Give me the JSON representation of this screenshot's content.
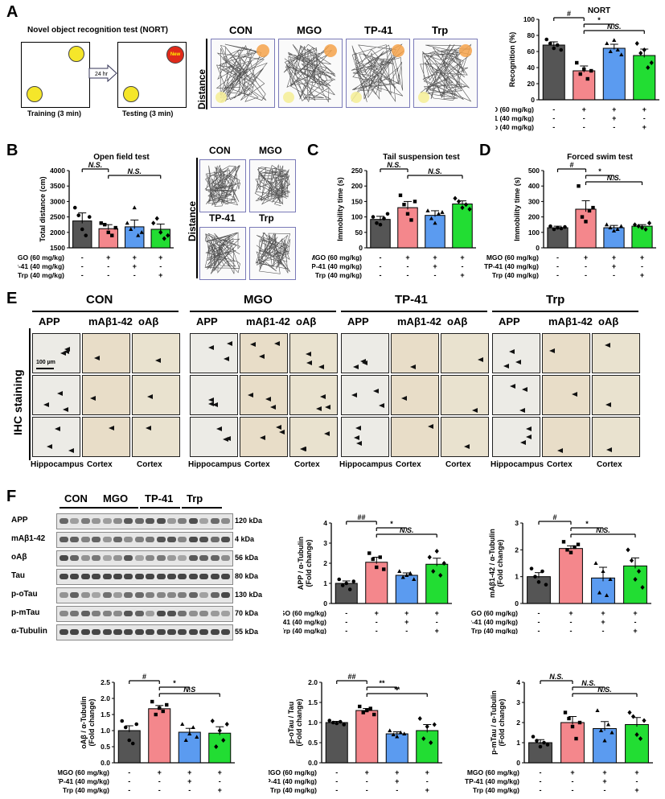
{
  "colors": {
    "CON": "#555555",
    "MGO": "#f4878c",
    "TP41": "#5b9bf0",
    "Trp": "#22dd33"
  },
  "panels": {
    "A": "A",
    "B": "B",
    "C": "C",
    "D": "D",
    "E": "E",
    "F": "F"
  },
  "nort_schema": {
    "title": "Novel object recognition test (NORT)",
    "arrow": "24 hr",
    "new_label": "New",
    "training": "Training (3 min)",
    "testing": "Testing (3 min)"
  },
  "tracks_A": {
    "distance": "Distance",
    "groups": [
      "CON",
      "MGO",
      "TP-41",
      "Trp"
    ]
  },
  "tracks_B": {
    "distance": "Distance",
    "groups": [
      "CON",
      "MGO",
      "TP-41",
      "Trp"
    ]
  },
  "treat_rows": {
    "mgo": "MGO (60 mg/kg)",
    "tp41": "TP-41 (40 mg/kg)",
    "trp": "Trp (40 mg/kg)",
    "mgo_signs": [
      "-",
      "+",
      "+",
      "+"
    ],
    "tp41_signs": [
      "-",
      "-",
      "+",
      "-"
    ],
    "trp_signs": [
      "-",
      "-",
      "-",
      "+"
    ]
  },
  "ihc": {
    "ylabel": "IHC staining",
    "scale": "100 µm",
    "groups": [
      {
        "name": "CON",
        "cols": [
          "APP",
          "mAβ1-42",
          "oAβ"
        ],
        "regions": [
          "Hippocampus",
          "Cortex",
          "Cortex"
        ]
      },
      {
        "name": "MGO",
        "cols": [
          "APP",
          "mAβ1-42",
          "oAβ"
        ],
        "regions": [
          "Hippocampus",
          "Cortex",
          "Cortex"
        ]
      },
      {
        "name": "TP-41",
        "cols": [
          "APP",
          "mAβ1-42",
          "oAβ"
        ],
        "regions": [
          "Hippocampus",
          "Cortex",
          "Cortex"
        ]
      },
      {
        "name": "Trp",
        "cols": [
          "APP",
          "mAβ1-42",
          "oAβ"
        ],
        "regions": [
          "Hippocampus",
          "Cortex",
          "Cortex"
        ]
      }
    ]
  },
  "blot": {
    "groups": [
      "CON",
      "MGO",
      "TP-41",
      "Trp"
    ],
    "rows": [
      {
        "name": "APP",
        "kda": "120 kDa"
      },
      {
        "name": "mAβ1-42",
        "kda": "4 kDa"
      },
      {
        "name": "oAβ",
        "kda": "56 kDa"
      },
      {
        "name": "Tau",
        "kda": "80 kDa"
      },
      {
        "name": "p-oTau",
        "kda": "130 kDa"
      },
      {
        "name": "p-mTau",
        "kda": "70 kDa"
      },
      {
        "name": "α-Tubulin",
        "kda": "55 kDa"
      }
    ]
  },
  "chart_data": [
    {
      "id": "nort",
      "type": "bar",
      "title": "NORT",
      "ylabel": "Recognition (%)",
      "ylim": [
        0,
        100
      ],
      "yticks": [
        0,
        20,
        40,
        60,
        80,
        100
      ],
      "categories": [
        "CON",
        "MGO",
        "TP-41",
        "Trp"
      ],
      "values": [
        68,
        36,
        64,
        55
      ],
      "errors": [
        4,
        6,
        5,
        8
      ],
      "points": [
        [
          75,
          70,
          64,
          68,
          62
        ],
        [
          46,
          32,
          38,
          26,
          36
        ],
        [
          70,
          60,
          74,
          62,
          56
        ],
        [
          70,
          58,
          62,
          40,
          46
        ]
      ],
      "sig": [
        {
          "from": 0,
          "to": 1,
          "label": "#"
        },
        {
          "from": 1,
          "to": 2,
          "label": "*"
        },
        {
          "from": 1,
          "to": 3,
          "label": "N.S."
        }
      ]
    },
    {
      "id": "openfield",
      "type": "bar",
      "title": "Open field test",
      "ylabel": "Total distance (cm)",
      "ylim": [
        1500,
        4000
      ],
      "yticks": [
        1500,
        2000,
        2500,
        3000,
        3500,
        4000
      ],
      "categories": [
        "CON",
        "MGO",
        "TP-41",
        "Trp"
      ],
      "values": [
        2370,
        2120,
        2180,
        2100
      ],
      "errors": [
        260,
        130,
        220,
        170
      ],
      "points": [
        [
          2800,
          2550,
          2100,
          1900,
          2500
        ],
        [
          2300,
          2250,
          2000,
          1900,
          2150
        ],
        [
          2300,
          2100,
          2800,
          1900,
          2000
        ],
        [
          2300,
          2450,
          2000,
          1800,
          1900
        ]
      ],
      "sig": [
        {
          "from": 0,
          "to": 1,
          "label": "N.S."
        },
        {
          "from": 1,
          "to": 3,
          "label": "N.S."
        }
      ]
    },
    {
      "id": "tail",
      "type": "bar",
      "title": "Tail suspension test",
      "ylabel": "Immobility time (s)",
      "ylim": [
        0,
        250
      ],
      "yticks": [
        0,
        50,
        100,
        150,
        200,
        250
      ],
      "categories": [
        "CON",
        "MGO",
        "TP-41",
        "Trp"
      ],
      "values": [
        92,
        130,
        105,
        142
      ],
      "errors": [
        10,
        20,
        15,
        10
      ],
      "points": [
        [
          100,
          80,
          75,
          95,
          110
        ],
        [
          170,
          140,
          110,
          90,
          150
        ],
        [
          120,
          95,
          80,
          110,
          115
        ],
        [
          160,
          150,
          130,
          140,
          125
        ]
      ],
      "sig": [
        {
          "from": 0,
          "to": 1,
          "label": "N.S."
        },
        {
          "from": 1,
          "to": 3,
          "label": "N.S."
        }
      ]
    },
    {
      "id": "swim",
      "type": "bar",
      "title": "Forced swim test",
      "ylabel": "Immobility time (s)",
      "ylim": [
        0,
        500
      ],
      "yticks": [
        0,
        100,
        200,
        300,
        400,
        500
      ],
      "categories": [
        "CON",
        "MGO",
        "TP-41",
        "Trp"
      ],
      "values": [
        130,
        250,
        130,
        140
      ],
      "errors": [
        10,
        55,
        15,
        10
      ],
      "points": [
        [
          140,
          120,
          130,
          125,
          135
        ],
        [
          400,
          200,
          170,
          240,
          260
        ],
        [
          150,
          130,
          110,
          120,
          140
        ],
        [
          150,
          140,
          130,
          120,
          160
        ]
      ],
      "sig": [
        {
          "from": 0,
          "to": 1,
          "label": "#"
        },
        {
          "from": 1,
          "to": 2,
          "label": "*"
        },
        {
          "from": 1,
          "to": 3,
          "label": "N.S."
        }
      ]
    },
    {
      "id": "app",
      "type": "bar",
      "ylabel": "APP / α-Tubulin\n(Fold change)",
      "ylim": [
        0,
        4
      ],
      "yticks": [
        0,
        1,
        2,
        3,
        4
      ],
      "categories": [
        "CON",
        "MGO",
        "TP-41",
        "Trp"
      ],
      "values": [
        1.0,
        2.05,
        1.4,
        1.95
      ],
      "errors": [
        0.12,
        0.25,
        0.12,
        0.3
      ],
      "points": [
        [
          1.2,
          0.9,
          1.0,
          0.7,
          1.1
        ],
        [
          2.5,
          2.2,
          1.8,
          2.3,
          1.7
        ],
        [
          1.6,
          1.3,
          1.4,
          1.5,
          1.2
        ],
        [
          2.3,
          1.6,
          2.6,
          1.4,
          2.0
        ]
      ],
      "sig": [
        {
          "from": 0,
          "to": 1,
          "label": "##"
        },
        {
          "from": 1,
          "to": 2,
          "label": "*"
        },
        {
          "from": 1,
          "to": 3,
          "label": "N.S."
        }
      ]
    },
    {
      "id": "mab",
      "type": "bar",
      "ylabel": "mAβ1-42 / α-Tubulin\n(Fold change)",
      "ylim": [
        0,
        3
      ],
      "yticks": [
        0,
        1,
        2,
        3
      ],
      "categories": [
        "CON",
        "MGO",
        "TP-41",
        "Trp"
      ],
      "values": [
        1.0,
        2.05,
        0.95,
        1.4
      ],
      "errors": [
        0.15,
        0.1,
        0.4,
        0.3
      ],
      "points": [
        [
          1.3,
          1.0,
          0.8,
          1.2,
          0.7
        ],
        [
          2.3,
          2.0,
          1.9,
          2.1,
          2.2
        ],
        [
          1.5,
          0.4,
          1.2,
          0.3,
          0.9
        ],
        [
          2.0,
          1.6,
          0.9,
          1.2,
          0.6
        ]
      ],
      "sig": [
        {
          "from": 0,
          "to": 1,
          "label": "#"
        },
        {
          "from": 1,
          "to": 2,
          "label": "*"
        },
        {
          "from": 1,
          "to": 3,
          "label": "N.S."
        }
      ]
    },
    {
      "id": "oab",
      "type": "bar",
      "ylabel": "oAβ / α-Tubulin\n(Fold change)",
      "ylim": [
        0,
        2.5
      ],
      "yticks": [
        0.0,
        0.5,
        1.0,
        1.5,
        2.0,
        2.5
      ],
      "categories": [
        "CON",
        "MGO",
        "TP-41",
        "Trp"
      ],
      "values": [
        1.0,
        1.68,
        0.95,
        0.92
      ],
      "errors": [
        0.15,
        0.1,
        0.12,
        0.2
      ],
      "points": [
        [
          1.3,
          1.1,
          0.7,
          0.6,
          1.2
        ],
        [
          1.9,
          1.5,
          1.7,
          1.6,
          1.8
        ],
        [
          1.2,
          0.7,
          0.9,
          1.1,
          0.8
        ],
        [
          1.3,
          0.5,
          1.0,
          0.7,
          1.2
        ]
      ],
      "sig": [
        {
          "from": 0,
          "to": 1,
          "label": "#"
        },
        {
          "from": 1,
          "to": 2,
          "label": "*"
        },
        {
          "from": 1,
          "to": 3,
          "label": "N.S"
        }
      ]
    },
    {
      "id": "potau",
      "type": "bar",
      "ylabel": "p-oTau / Tau\n(Fold change)",
      "ylim": [
        0,
        2.0
      ],
      "yticks": [
        0.0,
        0.5,
        1.0,
        1.5,
        2.0
      ],
      "categories": [
        "CON",
        "MGO",
        "TP-41",
        "Trp"
      ],
      "values": [
        1.0,
        1.3,
        0.72,
        0.8
      ],
      "errors": [
        0.03,
        0.05,
        0.05,
        0.15
      ],
      "points": [
        [
          1.05,
          1.0,
          0.98,
          1.02,
          0.95
        ],
        [
          1.4,
          1.25,
          1.3,
          1.35,
          1.2
        ],
        [
          0.8,
          0.7,
          0.65,
          0.75,
          0.72
        ],
        [
          1.1,
          0.6,
          0.9,
          0.5,
          0.95
        ]
      ],
      "sig": [
        {
          "from": 0,
          "to": 1,
          "label": "##"
        },
        {
          "from": 1,
          "to": 2,
          "label": "**"
        },
        {
          "from": 1,
          "to": 3,
          "label": "**"
        }
      ]
    },
    {
      "id": "pmtau",
      "type": "bar",
      "ylabel": "p-mTau / α-Tubulin\n(Fold change)",
      "ylim": [
        0,
        4
      ],
      "yticks": [
        0,
        1,
        2,
        3,
        4
      ],
      "categories": [
        "CON",
        "MGO",
        "TP-41",
        "Trp"
      ],
      "values": [
        1.0,
        2.0,
        1.7,
        1.9
      ],
      "errors": [
        0.15,
        0.3,
        0.35,
        0.35
      ],
      "points": [
        [
          1.3,
          1.1,
          0.8,
          1.0,
          0.9
        ],
        [
          2.5,
          2.2,
          1.8,
          1.2,
          2.0
        ],
        [
          2.6,
          1.6,
          1.1,
          1.9,
          1.5
        ],
        [
          2.5,
          2.3,
          1.4,
          1.2,
          2.1
        ]
      ],
      "sig": [
        {
          "from": 0,
          "to": 1,
          "label": "N.S."
        },
        {
          "from": 1,
          "to": 2,
          "label": "N.S."
        },
        {
          "from": 1,
          "to": 3,
          "label": "N.S."
        }
      ]
    }
  ]
}
